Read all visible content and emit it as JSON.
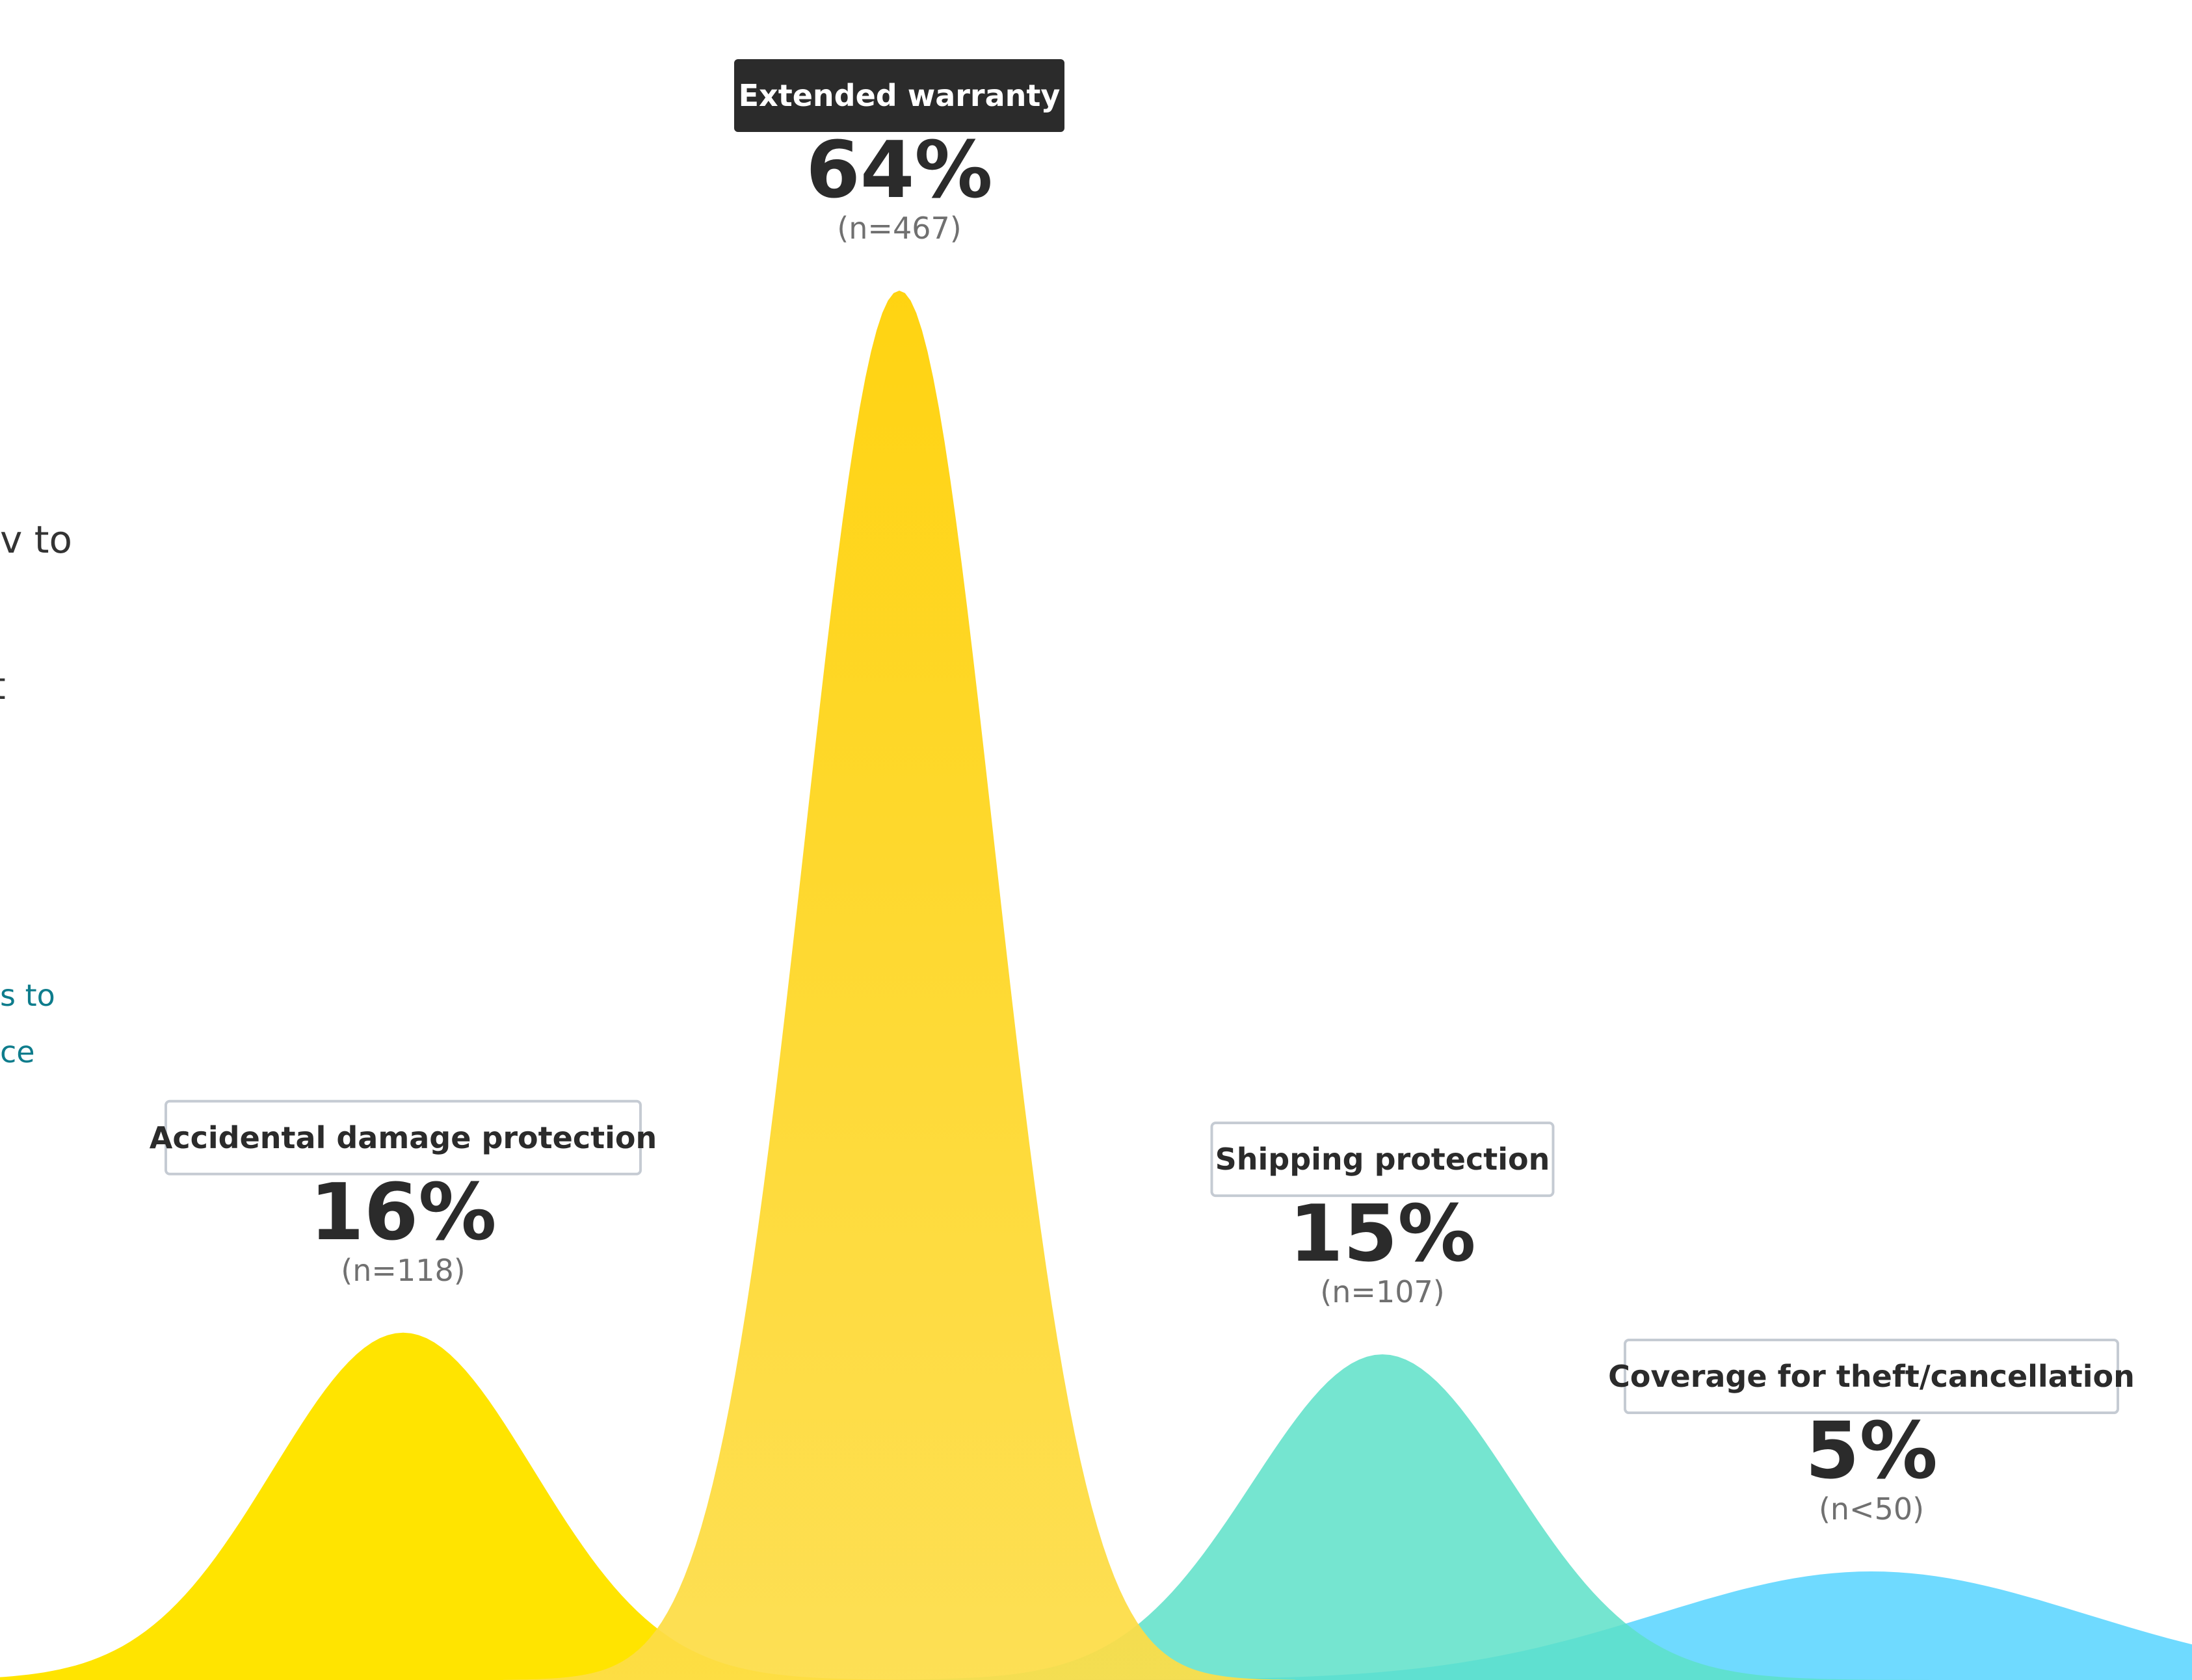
{
  "side_text": {
    "line_1": "v to",
    "line_2": "t",
    "link_1": "s to",
    "link_2": "ce"
  },
  "colors": {
    "accidental": "#FFE400",
    "extended_top": "#FFD000",
    "extended_bottom": "#FDDD48",
    "shipping": "#5DE0C8",
    "theft": "#4FD2FF",
    "overlap_orange": "#FBBD08",
    "overlap_green": "#7DC63A",
    "overlap_teal": "#33BFCF",
    "dark_tag": "#2B2B2B",
    "label_border": "#C5CBD3",
    "link_blue": "#0E7C8C"
  },
  "chart_data": {
    "type": "area",
    "title": "",
    "xlabel": "",
    "ylabel": "",
    "ylim": [
      0,
      64
    ],
    "grid": false,
    "legend": "none",
    "series": [
      {
        "key": "accidental",
        "label": "Accidental damage protection",
        "value": 16,
        "value_label": "16%",
        "n_label": "(n=118)",
        "highlighted": false
      },
      {
        "key": "extended",
        "label": "Extended warranty",
        "value": 64,
        "value_label": "64%",
        "n_label": "(n=467)",
        "highlighted": true
      },
      {
        "key": "shipping",
        "label": "Shipping protection",
        "value": 15,
        "value_label": "15%",
        "n_label": "(n=107)",
        "highlighted": false
      },
      {
        "key": "theft",
        "label": "Coverage for theft/cancellation",
        "value": 5,
        "value_label": "5%",
        "n_label": "(n<50)",
        "highlighted": false
      }
    ]
  }
}
